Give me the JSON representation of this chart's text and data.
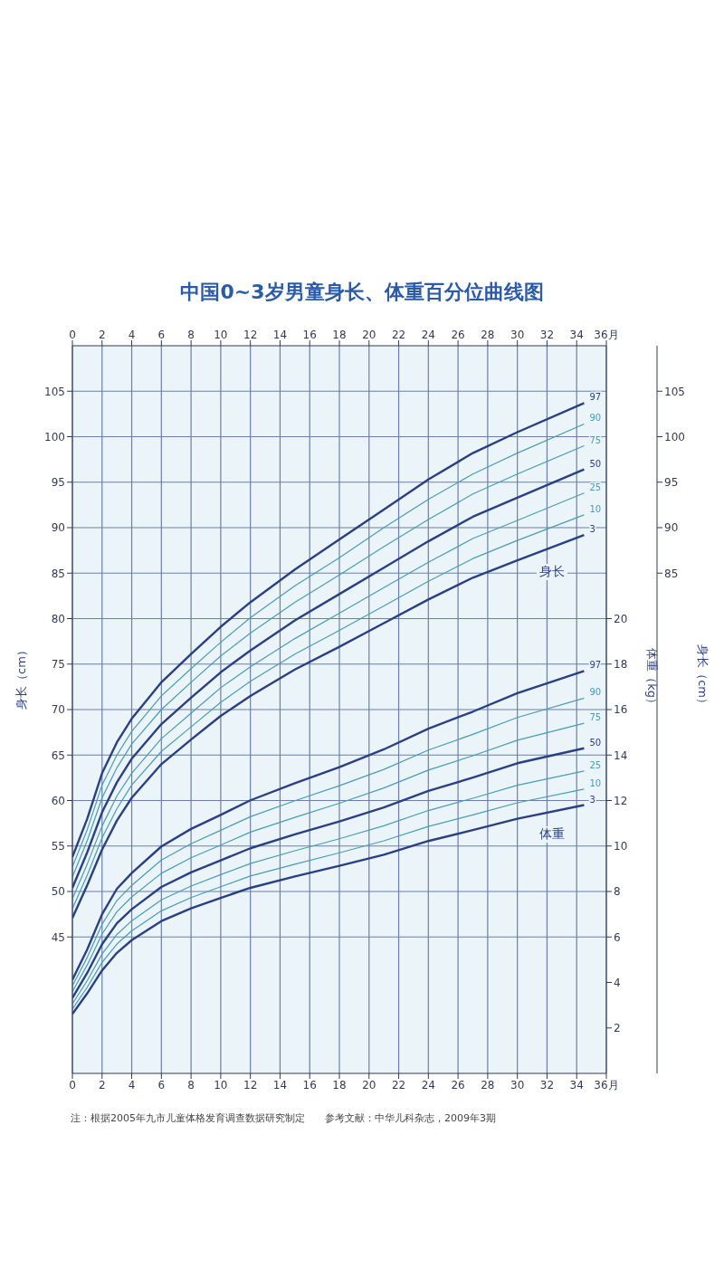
{
  "chart_data": {
    "type": "line",
    "title": "中国0~3岁男童身长、体重百分位曲线图",
    "xlabel": null,
    "ylabel": "身长（cm）",
    "y2label": "体重（kg）",
    "y3label": "身长（cm）",
    "x": [
      0,
      1,
      2,
      3,
      4,
      6,
      8,
      10,
      12,
      15,
      18,
      21,
      24,
      27,
      30,
      34.5
    ],
    "xlim": [
      0,
      36
    ],
    "xticks": [
      0,
      2,
      4,
      6,
      8,
      10,
      12,
      14,
      16,
      18,
      20,
      22,
      24,
      26,
      28,
      30,
      32,
      34,
      {
        "value": 36,
        "label": "36月"
      }
    ],
    "x2lim": [
      0,
      36
    ],
    "x2ticks": [
      0,
      2,
      4,
      6,
      8,
      10,
      12,
      14,
      16,
      18,
      20,
      22,
      24,
      26,
      28,
      30,
      32,
      34,
      {
        "value": 36,
        "label": "36月"
      }
    ],
    "ylim": [
      30,
      110
    ],
    "yticks": [
      45,
      50,
      55,
      60,
      65,
      70,
      75,
      80,
      85,
      90,
      95,
      100,
      105
    ],
    "y2lim": [
      0,
      32
    ],
    "y2ticks": [
      2,
      4,
      6,
      8,
      10,
      12,
      14,
      16,
      18,
      20
    ],
    "y3lim": [
      30,
      110
    ],
    "y3ticks": [
      85,
      90,
      95,
      100,
      105
    ],
    "grid": true,
    "legend": false,
    "line_style": "solid",
    "series": [
      {
        "name": "3",
        "color": "#2b3f85",
        "values": [
          47.1,
          50.7,
          54.6,
          57.8,
          60.3,
          64.0,
          66.7,
          69.3,
          71.5,
          74.4,
          76.9,
          79.5,
          82.1,
          84.5,
          86.4,
          89.2
        ]
      },
      {
        "name": "10",
        "color": "#4a9cb4",
        "values": [
          48.1,
          51.8,
          55.9,
          59.1,
          61.7,
          65.4,
          68.1,
          70.8,
          73.1,
          76.1,
          78.7,
          81.4,
          84.1,
          86.6,
          88.6,
          91.4
        ]
      },
      {
        "name": "25",
        "color": "#4a9cb4",
        "values": [
          49.2,
          53.0,
          57.2,
          60.5,
          63.0,
          66.8,
          69.6,
          72.4,
          74.7,
          77.8,
          80.6,
          83.4,
          86.2,
          88.8,
          90.8,
          93.8
        ]
      },
      {
        "name": "50",
        "color": "#2b3f85",
        "values": [
          50.4,
          54.3,
          58.7,
          62.0,
          64.6,
          68.4,
          71.3,
          74.1,
          76.5,
          79.8,
          82.7,
          85.6,
          88.5,
          91.2,
          93.3,
          96.4
        ]
      },
      {
        "name": "75",
        "color": "#4a9cb4",
        "values": [
          51.6,
          55.6,
          60.3,
          63.6,
          66.2,
          70.0,
          73.0,
          75.9,
          78.4,
          81.8,
          84.8,
          87.9,
          90.9,
          93.7,
          95.9,
          99.0
        ]
      },
      {
        "name": "90",
        "color": "#4a9cb4",
        "values": [
          52.7,
          56.8,
          61.7,
          65.0,
          67.6,
          71.5,
          74.5,
          77.4,
          80.1,
          83.6,
          86.7,
          90.0,
          93.1,
          95.9,
          98.2,
          101.4
        ]
      },
      {
        "name": "97",
        "color": "#2b3f85",
        "values": [
          53.8,
          58.0,
          63.0,
          66.4,
          69.0,
          73.0,
          76.1,
          79.1,
          81.8,
          85.4,
          88.7,
          92.0,
          95.3,
          98.2,
          100.5,
          103.7
        ]
      },
      {
        "name": "3",
        "color": "#2b3f85",
        "axis": "y2",
        "values": [
          2.62,
          3.52,
          4.53,
          5.3,
          5.86,
          6.7,
          7.26,
          7.72,
          8.16,
          8.66,
          9.13,
          9.62,
          10.22,
          10.7,
          11.2,
          11.8
        ]
      },
      {
        "name": "10",
        "color": "#4a9cb4",
        "axis": "y2",
        "values": [
          2.83,
          3.79,
          4.88,
          5.69,
          6.27,
          7.15,
          7.73,
          8.21,
          8.68,
          9.2,
          9.7,
          10.23,
          10.86,
          11.37,
          11.9,
          12.5
        ]
      },
      {
        "name": "25",
        "color": "#4a9cb4",
        "axis": "y2",
        "values": [
          3.06,
          4.08,
          5.25,
          6.11,
          6.71,
          7.63,
          8.24,
          8.74,
          9.23,
          9.79,
          10.32,
          10.89,
          11.56,
          12.1,
          12.67,
          13.3
        ]
      },
      {
        "name": "50",
        "color": "#2b3f85",
        "axis": "y2",
        "values": [
          3.32,
          4.42,
          5.68,
          6.6,
          7.22,
          8.2,
          8.84,
          9.37,
          9.9,
          10.51,
          11.08,
          11.7,
          12.42,
          13.01,
          13.64,
          14.3
        ]
      },
      {
        "name": "75",
        "color": "#4a9cb4",
        "axis": "y2",
        "values": [
          3.59,
          4.77,
          6.13,
          7.11,
          7.76,
          8.8,
          9.48,
          10.04,
          10.61,
          11.26,
          11.88,
          12.55,
          13.34,
          13.97,
          14.65,
          15.4
        ]
      },
      {
        "name": "90",
        "color": "#4a9cb4",
        "axis": "y2",
        "values": [
          3.85,
          5.1,
          6.56,
          7.6,
          8.27,
          9.38,
          10.1,
          10.69,
          11.29,
          11.99,
          12.65,
          13.37,
          14.22,
          14.91,
          15.65,
          16.5
        ]
      },
      {
        "name": "97",
        "color": "#2b3f85",
        "axis": "y2",
        "values": [
          4.12,
          5.45,
          7.0,
          8.12,
          8.81,
          9.98,
          10.75,
          11.37,
          12.01,
          12.76,
          13.47,
          14.25,
          15.16,
          15.91,
          16.72,
          17.7
        ]
      }
    ],
    "annotations": [
      "身长",
      "体重",
      "注：根据2005年九市儿童体格发育调查数据研究制定　　参考文献：中华儿科杂志，2009年3期"
    ]
  }
}
